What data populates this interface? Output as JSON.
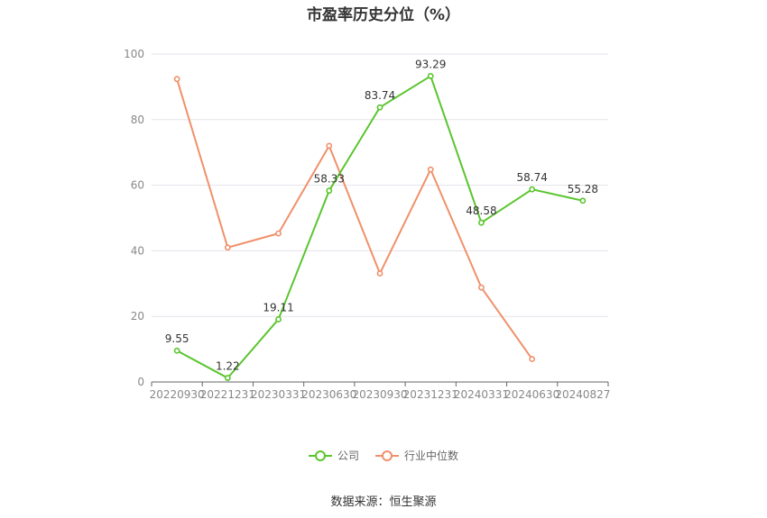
{
  "chart_data": {
    "type": "line",
    "title": "市盈率历史分位（%）",
    "xlabel": "",
    "ylabel": "",
    "ylim": [
      0,
      100
    ],
    "y_ticks": [
      0,
      20,
      40,
      60,
      80,
      100
    ],
    "categories": [
      "20220930",
      "20221231",
      "20230331",
      "20230630",
      "20230930",
      "20231231",
      "20240331",
      "20240630",
      "20240827"
    ],
    "series": [
      {
        "name": "公司",
        "color": "#5ac52e",
        "values": [
          9.55,
          1.22,
          19.11,
          58.33,
          83.74,
          93.29,
          48.58,
          58.74,
          55.28
        ],
        "labels": [
          "9.55",
          "1.22",
          "19.11",
          "58.33",
          "83.74",
          "93.29",
          "48.58",
          "58.74",
          "55.28"
        ]
      },
      {
        "name": "行业中位数",
        "color": "#f0906a",
        "values": [
          92.4,
          41.0,
          45.3,
          72.0,
          33.1,
          64.8,
          28.8,
          7.0,
          null
        ],
        "labels": []
      }
    ],
    "grid": true,
    "legend_position": "bottom",
    "source": "数据来源：恒生聚源"
  }
}
